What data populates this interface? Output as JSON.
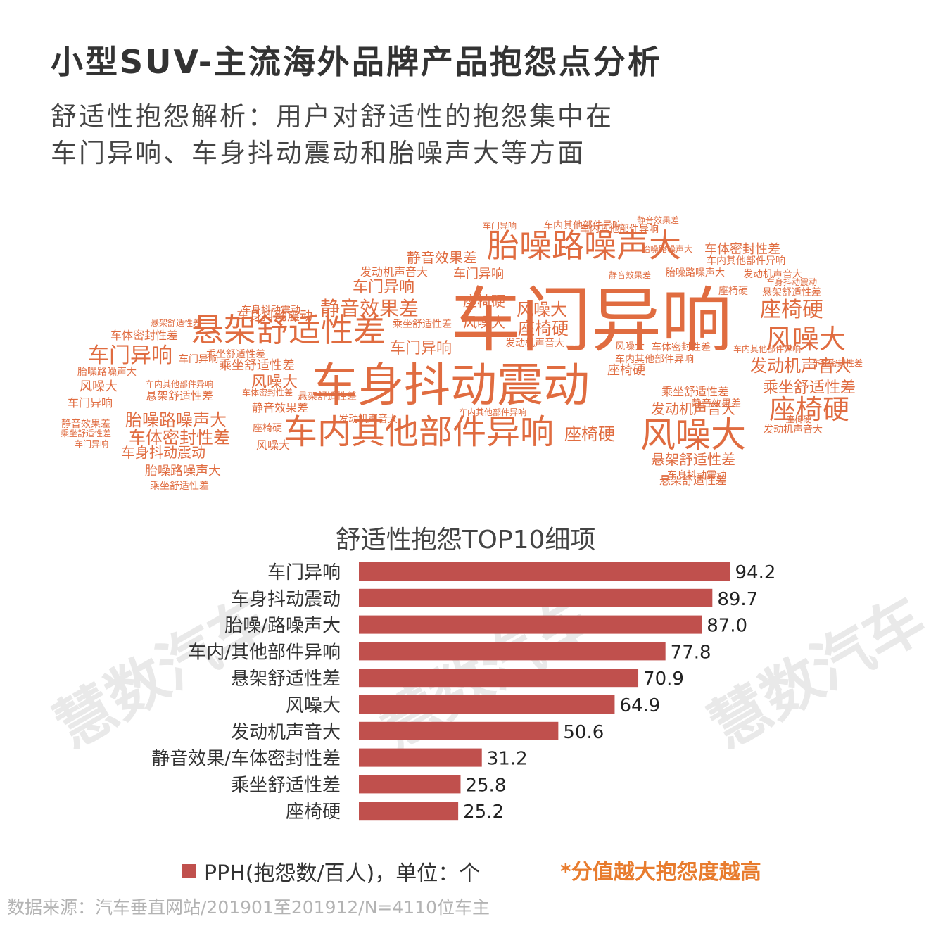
{
  "header": {
    "title": "小型SUV-主流海外品牌产品抱怨点分析",
    "subtitle_line1": "舒适性抱怨解析：用户对舒适性的抱怨集中在",
    "subtitle_line2": "车门异响、车身抖动震动和胎噪声大等方面"
  },
  "watermark": {
    "text": "慧数汽车"
  },
  "word_cloud": {
    "words": [
      {
        "text": "车门异响",
        "rank": 1
      },
      {
        "text": "车身抖动震动",
        "rank": 2
      },
      {
        "text": "车内其他部件异响",
        "rank": 3
      },
      {
        "text": "胎噪路噪声大",
        "rank": 4
      },
      {
        "text": "悬架舒适性差",
        "rank": 5
      },
      {
        "text": "风噪大",
        "rank": 6
      },
      {
        "text": "座椅硬",
        "rank": 7
      },
      {
        "text": "静音效果差",
        "rank": 8
      },
      {
        "text": "发动机声音大",
        "rank": 9
      },
      {
        "text": "车体密封性差",
        "rank": 10
      },
      {
        "text": "乘坐舒适性差",
        "rank": 11
      }
    ]
  },
  "chart_data": {
    "type": "bar",
    "orientation": "horizontal",
    "title": "舒适性抱怨TOP10细项",
    "categories": [
      "车门异响",
      "车身抖动震动",
      "胎噪/路噪声大",
      "车内/其他部件异响",
      "悬架舒适性差",
      "风噪大",
      "发动机声音大",
      "静音效果/车体密封性差",
      "乘坐舒适性差",
      "座椅硬"
    ],
    "values": [
      94.2,
      89.7,
      87.0,
      77.8,
      70.9,
      64.9,
      50.6,
      31.2,
      25.8,
      25.2
    ],
    "value_labels": [
      "94.2",
      "89.7",
      "87.0",
      "77.8",
      "70.9",
      "64.9",
      "50.6",
      "31.2",
      "25.8",
      "25.2"
    ],
    "series": [
      {
        "name": "PPH(抱怨数/百人)，单位：个",
        "values": [
          94.2,
          89.7,
          87.0,
          77.8,
          70.9,
          64.9,
          50.6,
          31.2,
          25.8,
          25.2
        ]
      }
    ],
    "xlim": [
      0,
      100
    ],
    "grid": false,
    "legend_position": "bottom-left",
    "color": "#c0504d"
  },
  "legend": {
    "label": "PPH(抱怨数/百人)，单位：个"
  },
  "note": {
    "text": "*分值越大抱怨度越高"
  },
  "footer": {
    "source": "数据来源：汽车垂直网站/201901至201912/N=4110位车主"
  },
  "colors": {
    "word_cloud": "#e06c40",
    "bar": "#c0504d",
    "note": "#e87c2e"
  }
}
